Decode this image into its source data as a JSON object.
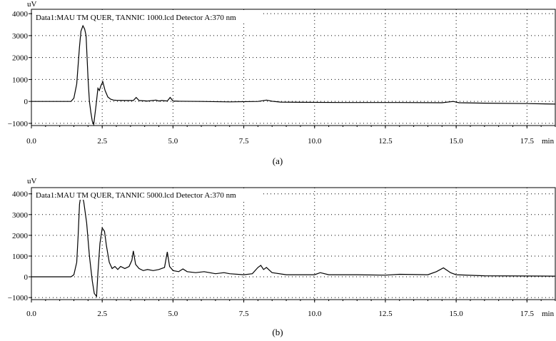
{
  "chart_data": [
    {
      "type": "line",
      "title": "Data1:MAU TM QUER, TANNIC 1000.lcd Detector A:370 nm",
      "ylabel": "uV",
      "xunit": "min",
      "caption": "(a)",
      "xlim": [
        0,
        18.5
      ],
      "ylim": [
        -1100,
        4200
      ],
      "xticks": [
        0.0,
        2.5,
        5.0,
        7.5,
        10.0,
        12.5,
        15.0,
        17.5
      ],
      "xtick_labels": [
        "0.0",
        "2.5",
        "5.0",
        "7.5",
        "10.0",
        "12.5",
        "15.0",
        "17.5"
      ],
      "yticks": [
        4000,
        3000,
        2000,
        1000,
        0,
        -1000
      ],
      "ytick_labels": [
        "4000",
        "3000",
        "2000",
        "1000",
        "0",
        "−1000"
      ],
      "grid": true,
      "series": [
        {
          "x": [
            0,
            1.0,
            1.4,
            1.5,
            1.6,
            1.7,
            1.75,
            1.82,
            1.88,
            1.93,
            2.0,
            2.05,
            2.1,
            2.15,
            2.2,
            2.28,
            2.35,
            2.4,
            2.45,
            2.52,
            2.6,
            2.7,
            2.8,
            2.9,
            3.0,
            3.3,
            3.6,
            3.7,
            3.8,
            4.1,
            4.4,
            4.5,
            4.6,
            4.8,
            4.9,
            5.0,
            5.2,
            6.0,
            7.0,
            8.0,
            8.3,
            8.5,
            8.8,
            9.5,
            11.0,
            13.0,
            14.5,
            14.9,
            15.1,
            16.0,
            17.5,
            18.5
          ],
          "y": [
            0,
            0,
            0,
            150,
            800,
            2500,
            3200,
            3450,
            3300,
            3000,
            1000,
            0,
            -500,
            -900,
            -1050,
            -200,
            600,
            500,
            700,
            900,
            500,
            200,
            100,
            60,
            50,
            40,
            40,
            180,
            40,
            20,
            60,
            20,
            40,
            20,
            180,
            20,
            10,
            0,
            -20,
            0,
            60,
            10,
            -30,
            -40,
            -50,
            -50,
            -60,
            0,
            -60,
            -80,
            -100,
            -120
          ]
        }
      ]
    },
    {
      "type": "line",
      "title": "Data1:MAU TM QUER, TANNIC 5000.lcd Detector A:370 nm",
      "ylabel": "uV",
      "xunit": "min",
      "caption": "(b)",
      "xlim": [
        0,
        18.5
      ],
      "ylim": [
        -1100,
        4300
      ],
      "xticks": [
        0.0,
        2.5,
        5.0,
        7.5,
        10.0,
        12.5,
        15.0,
        17.5
      ],
      "xtick_labels": [
        "0.0",
        "2.5",
        "5.0",
        "7.5",
        "10.0",
        "12.5",
        "15.0",
        "17.5"
      ],
      "yticks": [
        4000,
        3000,
        2000,
        1000,
        0,
        -1000
      ],
      "ytick_labels": [
        "4000",
        "3000",
        "2000",
        "1000",
        "0",
        "−1000"
      ],
      "grid": true,
      "series": [
        {
          "x": [
            0,
            1.0,
            1.4,
            1.5,
            1.6,
            1.65,
            1.7,
            1.75,
            1.8,
            1.85,
            1.95,
            2.05,
            2.15,
            2.22,
            2.3,
            2.35,
            2.42,
            2.5,
            2.58,
            2.65,
            2.75,
            2.85,
            2.95,
            3.05,
            3.15,
            3.3,
            3.45,
            3.55,
            3.6,
            3.68,
            3.8,
            3.95,
            4.1,
            4.3,
            4.5,
            4.7,
            4.8,
            4.88,
            5.0,
            5.2,
            5.35,
            5.5,
            5.8,
            6.1,
            6.5,
            6.8,
            7.0,
            7.5,
            7.8,
            8.0,
            8.1,
            8.2,
            8.3,
            8.5,
            9.0,
            10.0,
            10.2,
            10.5,
            11.5,
            12.5,
            13.0,
            14.0,
            14.3,
            14.55,
            14.8,
            15.0,
            16.0,
            18.5
          ],
          "y": [
            0,
            0,
            0,
            100,
            700,
            2000,
            3500,
            3950,
            3900,
            3600,
            2600,
            1000,
            -200,
            -800,
            -950,
            200,
            1600,
            2350,
            2200,
            1500,
            700,
            400,
            500,
            350,
            500,
            400,
            500,
            800,
            1250,
            600,
            400,
            300,
            350,
            300,
            350,
            450,
            1200,
            500,
            300,
            250,
            380,
            250,
            200,
            250,
            150,
            200,
            150,
            100,
            150,
            450,
            550,
            350,
            450,
            200,
            100,
            100,
            200,
            100,
            100,
            80,
            120,
            100,
            250,
            430,
            200,
            100,
            50,
            30
          ]
        }
      ]
    }
  ]
}
